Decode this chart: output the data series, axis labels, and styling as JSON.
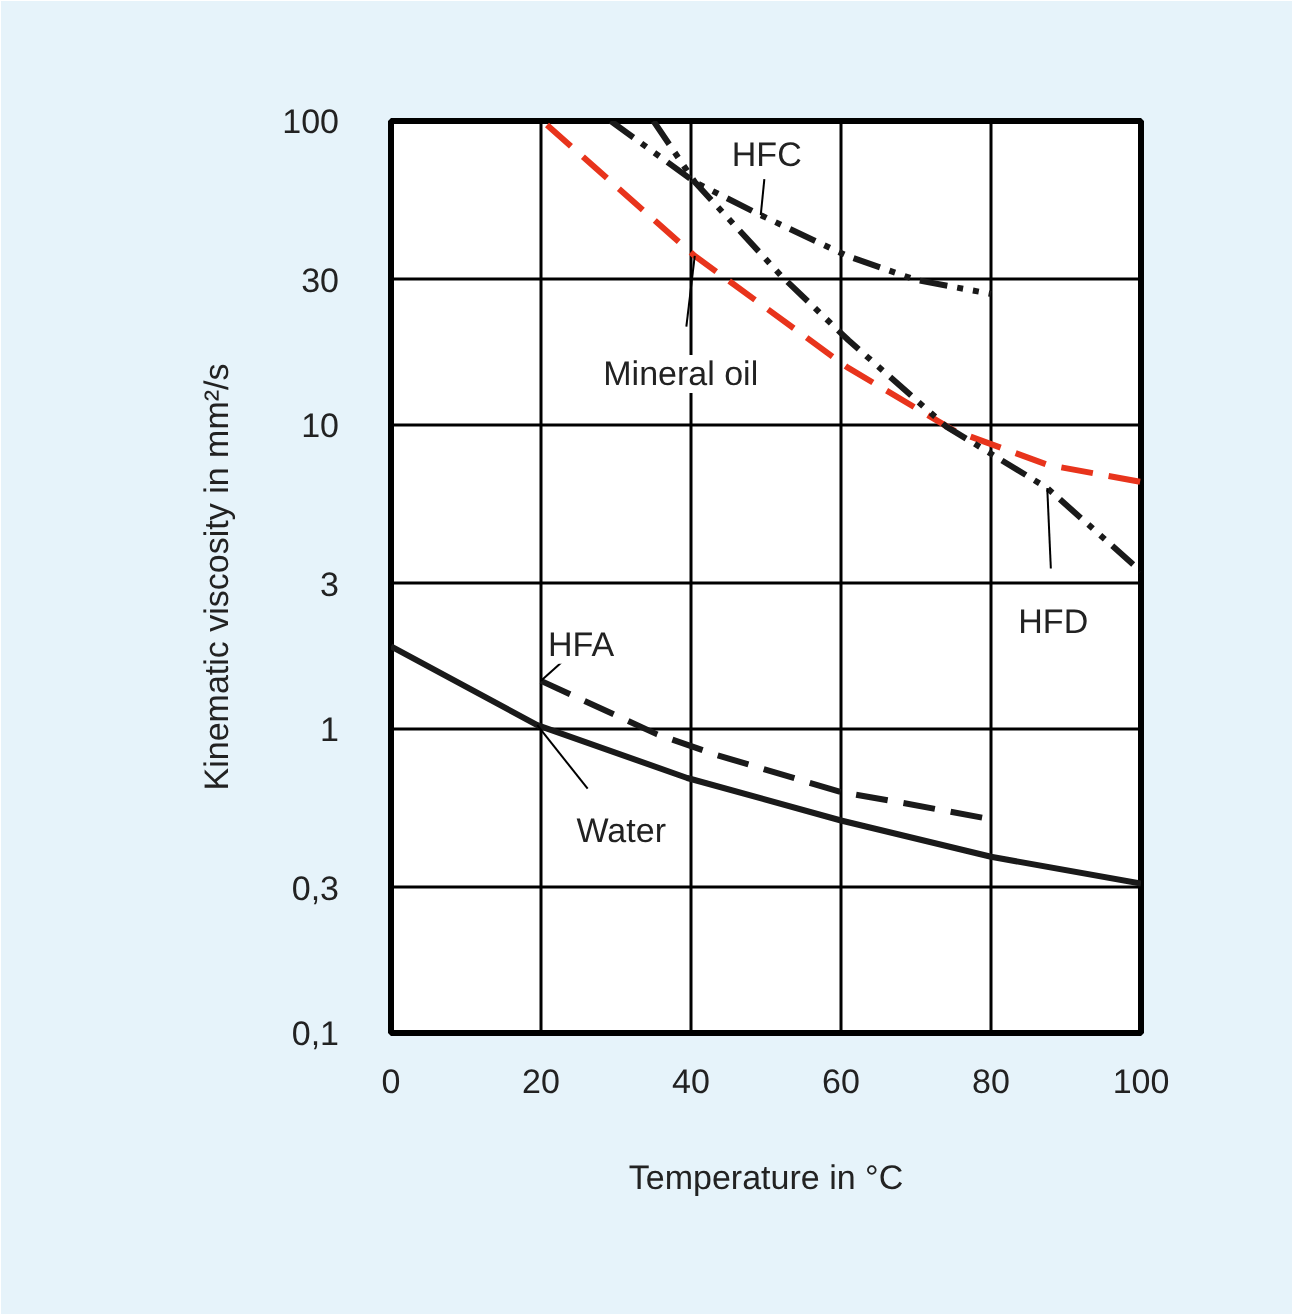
{
  "chart_data": {
    "type": "line",
    "xlabel": "Temperature in °C",
    "ylabel": "Kinematic viscosity in mm²/s",
    "xlim": [
      0,
      100
    ],
    "xticks": [
      0,
      20,
      40,
      60,
      80,
      100
    ],
    "log": "y",
    "ylim": [
      0.1,
      100
    ],
    "yticks": [
      {
        "value": 0.1,
        "label": "0,1"
      },
      {
        "value": 0.3,
        "label": "0,3"
      },
      1,
      3,
      10,
      30,
      100
    ],
    "grid": true,
    "series": [
      {
        "name": "HFC",
        "color": "#1a1a1a",
        "line_style": "dashdot",
        "x": [
          29.3,
          40.5,
          49.3,
          60.8,
          70,
          80
        ],
        "values": [
          100,
          63,
          49,
          36,
          30,
          27
        ]
      },
      {
        "name": "Mineral oil",
        "color": "#e8341c",
        "line_style": "dashed",
        "x": [
          20.8,
          40.5,
          60.8,
          75,
          87.5,
          100
        ],
        "values": [
          97,
          36,
          15.5,
          9.6,
          7.4,
          6.5
        ]
      },
      {
        "name": "HFD",
        "color": "#1a1a1a",
        "line_style": "dashdot",
        "x": [
          35,
          40.5,
          52,
          61,
          74,
          87.5,
          100
        ],
        "values": [
          100,
          63,
          31,
          19,
          9.9,
          6.2,
          3.3
        ]
      },
      {
        "name": "HFA",
        "color": "#1a1a1a",
        "line_style": "dashed",
        "x": [
          20,
          35.5,
          43.5,
          60,
          68.5,
          79
        ],
        "values": [
          1.44,
          0.96,
          0.82,
          0.62,
          0.57,
          0.51
        ]
      },
      {
        "name": "Water",
        "color": "#1a1a1a",
        "line_style": "solid",
        "x": [
          0,
          19.5,
          39.5,
          60,
          80,
          100
        ],
        "values": [
          1.87,
          1.03,
          0.69,
          0.5,
          0.38,
          0.31
        ]
      }
    ]
  }
}
